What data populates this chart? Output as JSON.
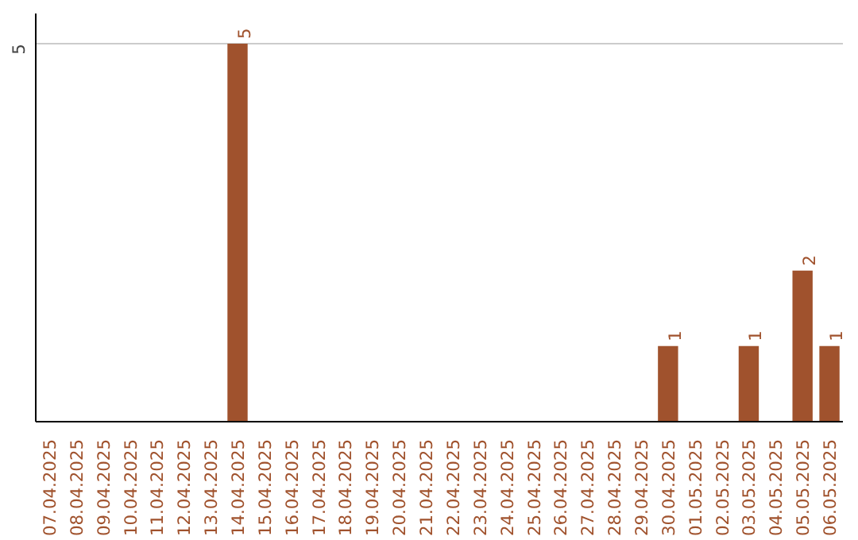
{
  "chart_data": {
    "type": "bar",
    "categories": [
      "07.04.2025",
      "08.04.2025",
      "09.04.2025",
      "10.04.2025",
      "11.04.2025",
      "12.04.2025",
      "13.04.2025",
      "14.04.2025",
      "15.04.2025",
      "16.04.2025",
      "17.04.2025",
      "18.04.2025",
      "19.04.2025",
      "20.04.2025",
      "21.04.2025",
      "22.04.2025",
      "23.04.2025",
      "24.04.2025",
      "25.04.2025",
      "26.04.2025",
      "27.04.2025",
      "28.04.2025",
      "29.04.2025",
      "30.04.2025",
      "01.05.2025",
      "02.05.2025",
      "03.05.2025",
      "04.05.2025",
      "05.05.2025",
      "06.05.2025"
    ],
    "values": [
      0,
      0,
      0,
      0,
      0,
      0,
      0,
      5,
      0,
      0,
      0,
      0,
      0,
      0,
      0,
      0,
      0,
      0,
      0,
      0,
      0,
      0,
      0,
      1,
      0,
      0,
      1,
      0,
      2,
      1
    ],
    "value_labels": [
      null,
      null,
      null,
      null,
      null,
      null,
      null,
      "5",
      null,
      null,
      null,
      null,
      null,
      null,
      null,
      null,
      null,
      null,
      null,
      null,
      null,
      null,
      null,
      "1",
      null,
      null,
      "1",
      null,
      "2",
      "1"
    ],
    "color": "#a0522d",
    "ylim": [
      0,
      5.4
    ],
    "yticks": [
      5
    ],
    "grid": "y"
  }
}
